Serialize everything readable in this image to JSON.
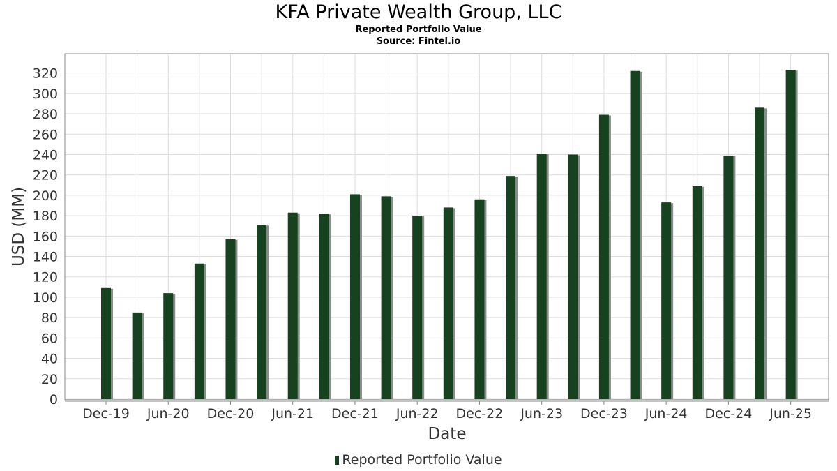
{
  "header": {
    "title": "KFA Private Wealth Group, LLC",
    "subtitle": "Reported Portfolio Value",
    "source": "Source: Fintel.io"
  },
  "colors": {
    "bar": "#17421f",
    "bar_shadow": "#8c8c8c",
    "grid": "#dddddd",
    "frame": "#888888"
  },
  "chart_data": {
    "type": "bar",
    "title": "KFA Private Wealth Group, LLC",
    "subtitle": "Reported Portfolio Value",
    "xlabel": "Date",
    "ylabel": "USD (MM)",
    "ylim": [
      0,
      337
    ],
    "yticks": [
      0,
      20,
      40,
      60,
      80,
      100,
      120,
      140,
      160,
      180,
      200,
      220,
      240,
      260,
      280,
      300,
      320
    ],
    "grid": true,
    "legend_position": "bottom-center",
    "x_tick_labels": [
      "Dec-19",
      "Jun-20",
      "Dec-20",
      "Jun-21",
      "Dec-21",
      "Jun-22",
      "Dec-22",
      "Jun-23",
      "Dec-23",
      "Jun-24",
      "Dec-24",
      "Jun-25"
    ],
    "categories": [
      "2019-12",
      "2020-03",
      "2020-06",
      "2020-09",
      "2020-12",
      "2021-03",
      "2021-06",
      "2021-09",
      "2021-12",
      "2022-03",
      "2022-06",
      "2022-09",
      "2022-12",
      "2023-03",
      "2023-06",
      "2023-09",
      "2023-12",
      "2024-03",
      "2024-06",
      "2024-09",
      "2024-12",
      "2025-03",
      "2025-06"
    ],
    "series": [
      {
        "name": "Reported Portfolio Value",
        "values": [
          109,
          85,
          104,
          133,
          157,
          171,
          183,
          182,
          201,
          199,
          180,
          188,
          196,
          219,
          241,
          240,
          279,
          322,
          193,
          209,
          239,
          286,
          323
        ]
      }
    ]
  }
}
